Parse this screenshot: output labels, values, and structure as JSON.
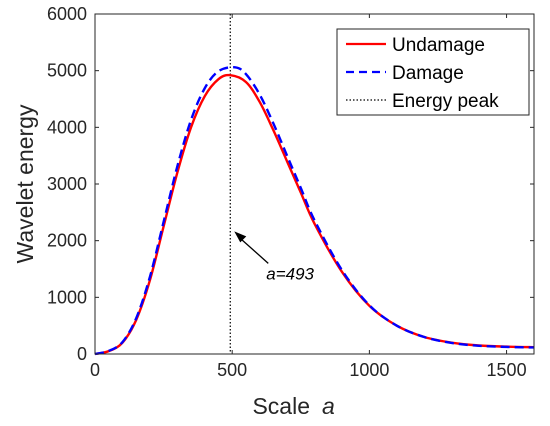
{
  "chart_data": {
    "type": "line",
    "title": "",
    "xlabel": "Scale",
    "xlabel_var": "a",
    "ylabel": "Wavelet energy",
    "xlim": [
      0,
      1600
    ],
    "ylim": [
      0,
      6000
    ],
    "xticks": [
      0,
      500,
      1000,
      1500
    ],
    "yticks": [
      0,
      1000,
      2000,
      3000,
      4000,
      5000,
      6000
    ],
    "grid": false,
    "legend_position": "top-right",
    "series": [
      {
        "name": "Undamage",
        "color": "#ff0000",
        "style": "solid",
        "x": [
          0,
          50,
          100,
          150,
          200,
          250,
          300,
          350,
          400,
          450,
          493,
          550,
          600,
          650,
          700,
          750,
          800,
          900,
          1000,
          1100,
          1200,
          1300,
          1400,
          1500,
          1600
        ],
        "y": [
          0,
          50,
          200,
          600,
          1300,
          2250,
          3200,
          4000,
          4550,
          4850,
          4920,
          4800,
          4450,
          3950,
          3400,
          2850,
          2300,
          1450,
          850,
          500,
          300,
          200,
          150,
          130,
          120
        ]
      },
      {
        "name": "Damage",
        "color": "#0000ff",
        "style": "dashed",
        "x": [
          0,
          50,
          100,
          150,
          200,
          250,
          300,
          350,
          400,
          450,
          510,
          550,
          600,
          650,
          700,
          750,
          800,
          900,
          1000,
          1100,
          1200,
          1300,
          1400,
          1500,
          1600
        ],
        "y": [
          0,
          55,
          210,
          630,
          1360,
          2330,
          3310,
          4130,
          4690,
          4990,
          5060,
          4940,
          4580,
          4070,
          3500,
          2930,
          2360,
          1480,
          860,
          500,
          300,
          195,
          145,
          125,
          115
        ]
      }
    ],
    "vline": {
      "name": "Energy peak",
      "x": 493,
      "color": "#000000",
      "style": "dotted"
    },
    "annotation": {
      "text": "a=493",
      "x": 493,
      "y": 2200
    }
  }
}
